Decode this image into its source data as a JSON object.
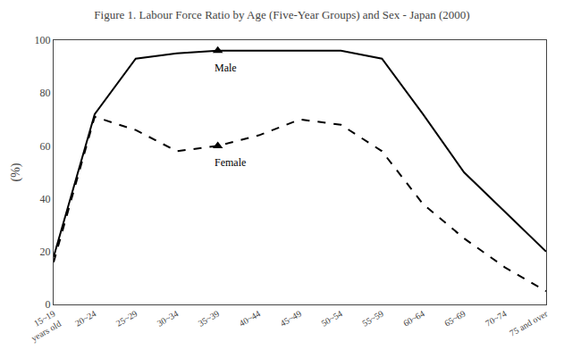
{
  "chart_data": {
    "type": "line",
    "title": "Figure 1. Labour Force Ratio by Age (Five-Year Groups) and Sex - Japan (2000)",
    "ylabel": "(%)",
    "categories": [
      "15~19\nyears old",
      "20~24",
      "25~29",
      "30~34",
      "35~39",
      "40~44",
      "45~49",
      "50~54",
      "55~59",
      "60~64",
      "65~69",
      "70~74",
      "75 and over"
    ],
    "series": [
      {
        "name": "Male",
        "color": "#000000",
        "line_style": "solid",
        "values": [
          18,
          72,
          93,
          95,
          96,
          96,
          96,
          96,
          93,
          72,
          50,
          35,
          20
        ]
      },
      {
        "name": "Female",
        "color": "#000000",
        "line_style": "dash",
        "values": [
          16,
          71,
          66,
          58,
          60,
          64,
          70,
          68,
          58,
          38,
          25,
          14,
          5
        ]
      }
    ],
    "ylim": [
      0,
      100
    ],
    "yticks": [
      0,
      20,
      40,
      60,
      80,
      100
    ],
    "grid": false,
    "marker": "triangle-up",
    "annotations": [
      {
        "text": "Male",
        "x": "35~39",
        "y": 96,
        "color": "#000000"
      },
      {
        "text": "Female",
        "x": "35~39",
        "y": 60,
        "color": "#000000"
      }
    ]
  }
}
